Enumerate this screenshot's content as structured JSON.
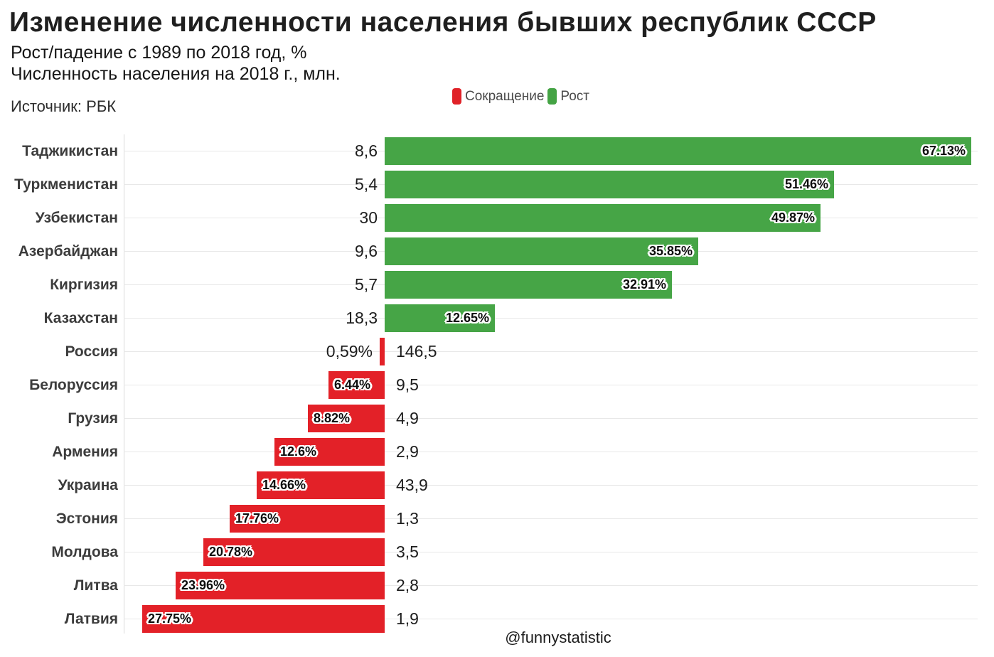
{
  "header": {
    "title": "Изменение численности населения бывших республик СССР",
    "subtitle1": "Рост/падение с 1989 по 2018 год, %",
    "subtitle2": "Численность населения на 2018 г., млн.",
    "source": "Источник: РБК"
  },
  "footer": {
    "handle": "@funnystatistic"
  },
  "chart_data": {
    "type": "bar",
    "orientation": "horizontal",
    "diverging": true,
    "title": "Изменение численности населения бывших республик СССР",
    "subtitle": "Рост/падение с 1989 по 2018 год, %",
    "value_unit": "%",
    "population_note": "Численность населения на 2018 г., млн.",
    "xlim": [
      -30,
      70
    ],
    "grid": true,
    "legend_position": "top",
    "legend": [
      {
        "label": "Сокращение",
        "color": "#e02228"
      },
      {
        "label": "Рост",
        "color": "#44a344"
      }
    ],
    "colors": {
      "growth": "#46a546",
      "decline": "#e32128"
    },
    "categories": [
      "Таджикистан",
      "Туркменистан",
      "Узбекистан",
      "Азербайджан",
      "Киргизия",
      "Казахстан",
      "Россия",
      "Белоруссия",
      "Грузия",
      "Армения",
      "Украина",
      "Эстония",
      "Молдова",
      "Литва",
      "Латвия"
    ],
    "values": [
      67.13,
      51.46,
      49.87,
      35.85,
      32.91,
      12.65,
      -0.59,
      -6.44,
      -8.82,
      -12.6,
      -14.66,
      -17.76,
      -20.78,
      -23.96,
      -27.75
    ],
    "value_labels": [
      "67.13%",
      "51.46%",
      "49.87%",
      "35.85%",
      "32.91%",
      "12.65%",
      "0,59%",
      "6.44%",
      "8.82%",
      "12.6%",
      "14.66%",
      "17.76%",
      "20.78%",
      "23.96%",
      "27.75%"
    ],
    "population_labels": [
      "8,6",
      "5,4",
      "30",
      "9,6",
      "5,7",
      "18,3",
      "146,5",
      "9,5",
      "4,9",
      "2,9",
      "43,9",
      "1,3",
      "3,5",
      "2,8",
      "1,9"
    ]
  }
}
